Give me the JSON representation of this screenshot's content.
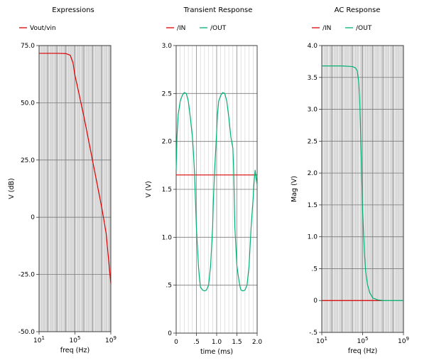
{
  "chart_data": [
    {
      "type": "line",
      "title": "Expressions",
      "xlabel": "freq (Hz)",
      "ylabel": "V (dB)",
      "xscale": "log",
      "xlim": [
        10,
        1000000000
      ],
      "ylim": [
        -50,
        75
      ],
      "xticks": [
        {
          "value": 10,
          "base": "10",
          "exp": "1"
        },
        {
          "value": 100000,
          "base": "10",
          "exp": "5"
        },
        {
          "value": 1000000000,
          "base": "10",
          "exp": "9"
        }
      ],
      "yticks": [
        {
          "value": 75,
          "label": "75.0"
        },
        {
          "value": 50,
          "label": "50.0"
        },
        {
          "value": 25,
          "label": "25.0"
        },
        {
          "value": 0,
          "label": "0"
        },
        {
          "value": -25,
          "label": "-25.0"
        },
        {
          "value": -50,
          "label": "-50.0"
        }
      ],
      "grid": true,
      "legend": "top",
      "series": [
        {
          "name": "Vout/vin",
          "color": "#dd0000",
          "x": [
            10,
            1000,
            10000,
            30000,
            60000,
            100000,
            300000,
            1000000,
            10000000,
            100000000,
            300000000,
            1000000000
          ],
          "y": [
            71.6,
            71.6,
            71.5,
            70.8,
            67.5,
            62.0,
            53.5,
            44.0,
            24.0,
            4.0,
            -7.0,
            -29.0
          ]
        }
      ]
    },
    {
      "type": "line",
      "title": "Transient Response",
      "xlabel": "time (ms)",
      "ylabel": "V (V)",
      "xscale": "linear",
      "xlim": [
        0,
        2.0
      ],
      "ylim": [
        0,
        3.0
      ],
      "xticks": [
        {
          "value": 0,
          "label": "0"
        },
        {
          "value": 0.5,
          "label": ".5"
        },
        {
          "value": 1.0,
          "label": "1.0"
        },
        {
          "value": 1.5,
          "label": "1.5"
        },
        {
          "value": 2.0,
          "label": "2.0"
        }
      ],
      "yticks": [
        {
          "value": 0,
          "label": "0"
        },
        {
          "value": 0.5,
          "label": ".5"
        },
        {
          "value": 1.0,
          "label": "1.0"
        },
        {
          "value": 1.5,
          "label": "1.5"
        },
        {
          "value": 2.0,
          "label": "2.0"
        },
        {
          "value": 2.5,
          "label": "2.5"
        },
        {
          "value": 3.0,
          "label": "3.0"
        }
      ],
      "grid": true,
      "legend": "top",
      "series": [
        {
          "name": "/IN",
          "color": "#dd0000",
          "x": [
            0,
            2.0
          ],
          "y": [
            1.65,
            1.65
          ]
        },
        {
          "name": "/OUT",
          "color": "#00b070",
          "x": [
            0,
            0.02,
            0.05,
            0.1,
            0.15,
            0.2,
            0.25,
            0.3,
            0.35,
            0.4,
            0.42,
            0.45,
            0.5,
            0.55,
            0.58,
            0.6,
            0.65,
            0.7,
            0.75,
            0.8,
            0.85,
            0.9,
            0.92,
            0.95,
            1.0,
            1.02,
            1.05,
            1.1,
            1.15,
            1.2,
            1.25,
            1.3,
            1.35,
            1.4,
            1.42,
            1.45,
            1.5,
            1.55,
            1.58,
            1.6,
            1.65,
            1.7,
            1.75,
            1.8,
            1.85,
            1.9,
            1.92,
            1.95,
            2.0
          ],
          "y": [
            1.7,
            2.05,
            2.28,
            2.42,
            2.48,
            2.51,
            2.5,
            2.42,
            2.25,
            2.05,
            1.93,
            1.7,
            1.1,
            0.7,
            0.55,
            0.48,
            0.45,
            0.44,
            0.45,
            0.5,
            0.7,
            1.1,
            1.4,
            1.7,
            2.1,
            2.28,
            2.42,
            2.48,
            2.51,
            2.5,
            2.42,
            2.25,
            2.05,
            1.93,
            1.7,
            1.1,
            0.7,
            0.55,
            0.48,
            0.45,
            0.44,
            0.45,
            0.5,
            0.7,
            1.1,
            1.4,
            1.55,
            1.7,
            1.54
          ]
        }
      ]
    },
    {
      "type": "line",
      "title": "AC Response",
      "xlabel": "freq (Hz)",
      "ylabel": "Mag (V)",
      "xscale": "log",
      "xlim": [
        10,
        1000000000
      ],
      "ylim": [
        -0.5,
        4.0
      ],
      "xticks": [
        {
          "value": 10,
          "base": "10",
          "exp": "1"
        },
        {
          "value": 100000,
          "base": "10",
          "exp": "5"
        },
        {
          "value": 1000000000,
          "base": "10",
          "exp": "9"
        }
      ],
      "yticks": [
        {
          "value": 4.0,
          "label": "4.0"
        },
        {
          "value": 3.5,
          "label": "3.5"
        },
        {
          "value": 3.0,
          "label": "3.0"
        },
        {
          "value": 2.5,
          "label": "2.5"
        },
        {
          "value": 2.0,
          "label": "2.0"
        },
        {
          "value": 1.5,
          "label": "1.5"
        },
        {
          "value": 1.0,
          "label": "1.0"
        },
        {
          "value": 0.5,
          "label": ".5"
        },
        {
          "value": 0,
          "label": "0"
        },
        {
          "value": -0.5,
          "label": "-.5"
        }
      ],
      "grid": true,
      "legend": "top",
      "series": [
        {
          "name": "/IN",
          "color": "#dd0000",
          "x": [
            10,
            10000000
          ],
          "y": [
            0,
            0
          ]
        },
        {
          "name": "/OUT",
          "color": "#00b070",
          "x": [
            10,
            1000,
            10000,
            20000,
            30000,
            40000,
            50000,
            60000,
            80000,
            100000,
            150000,
            200000,
            300000,
            500000,
            1000000,
            3000000,
            10000000,
            100000000,
            1000000000
          ],
          "y": [
            3.68,
            3.68,
            3.67,
            3.65,
            3.6,
            3.45,
            3.2,
            2.8,
            2.0,
            1.4,
            0.75,
            0.45,
            0.25,
            0.12,
            0.04,
            0.01,
            0,
            0,
            0
          ]
        }
      ]
    }
  ]
}
